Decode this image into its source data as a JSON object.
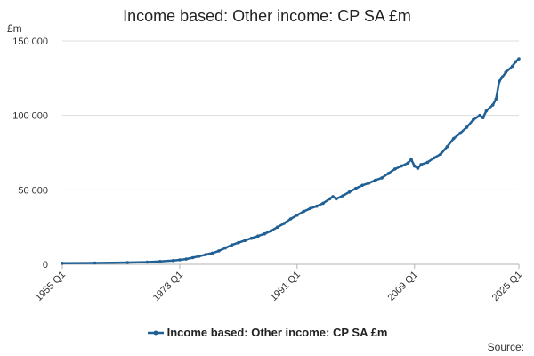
{
  "chart_data": {
    "type": "line",
    "title": "Income based: Other income: CP SA £m",
    "unit_label": "£m",
    "xlabel": "",
    "ylabel": "",
    "x_range": [
      "1955 Q1",
      "2025 Q1"
    ],
    "x_ticks": [
      "1955 Q1",
      "1973 Q1",
      "1991 Q1",
      "2009 Q1",
      "2025 Q1"
    ],
    "y_ticks": [
      "0",
      "50 000",
      "100 000",
      "150 000"
    ],
    "ylim": [
      0,
      150000
    ],
    "grid": "horizontal",
    "legend_position": "bottom",
    "series": [
      {
        "name": "Income based: Other income: CP SA £m",
        "color": "#206095",
        "points": [
          [
            "1955 Q1",
            700
          ],
          [
            "1960 Q1",
            900
          ],
          [
            "1965 Q1",
            1200
          ],
          [
            "1968 Q1",
            1500
          ],
          [
            "1970 Q1",
            1900
          ],
          [
            "1972 Q1",
            2500
          ],
          [
            "1973 Q1",
            3000
          ],
          [
            "1974 Q1",
            3500
          ],
          [
            "1975 Q1",
            4500
          ],
          [
            "1976 Q1",
            5500
          ],
          [
            "1977 Q1",
            6500
          ],
          [
            "1978 Q1",
            7500
          ],
          [
            "1979 Q1",
            9000
          ],
          [
            "1980 Q1",
            11000
          ],
          [
            "1981 Q1",
            13000
          ],
          [
            "1982 Q1",
            14500
          ],
          [
            "1983 Q1",
            16000
          ],
          [
            "1984 Q1",
            17500
          ],
          [
            "1985 Q1",
            19000
          ],
          [
            "1986 Q1",
            20500
          ],
          [
            "1987 Q1",
            22500
          ],
          [
            "1988 Q1",
            25000
          ],
          [
            "1989 Q1",
            27500
          ],
          [
            "1990 Q1",
            30500
          ],
          [
            "1991 Q1",
            33000
          ],
          [
            "1992 Q1",
            35500
          ],
          [
            "1993 Q1",
            37500
          ],
          [
            "1994 Q1",
            39000
          ],
          [
            "1995 Q1",
            41000
          ],
          [
            "1996 Q1",
            44000
          ],
          [
            "1996 Q3",
            45500
          ],
          [
            "1997 Q1",
            44000
          ],
          [
            "1998 Q1",
            46000
          ],
          [
            "1999 Q1",
            48500
          ],
          [
            "2000 Q1",
            51000
          ],
          [
            "2001 Q1",
            53000
          ],
          [
            "2002 Q1",
            54500
          ],
          [
            "2003 Q1",
            56500
          ],
          [
            "2004 Q1",
            58000
          ],
          [
            "2005 Q1",
            61000
          ],
          [
            "2006 Q1",
            64000
          ],
          [
            "2007 Q1",
            66000
          ],
          [
            "2008 Q1",
            68000
          ],
          [
            "2008 Q3",
            70500
          ],
          [
            "2009 Q1",
            66000
          ],
          [
            "2009 Q3",
            64500
          ],
          [
            "2010 Q1",
            67000
          ],
          [
            "2011 Q1",
            68500
          ],
          [
            "2012 Q1",
            71500
          ],
          [
            "2013 Q1",
            74000
          ],
          [
            "2014 Q1",
            79000
          ],
          [
            "2015 Q1",
            84500
          ],
          [
            "2016 Q1",
            88000
          ],
          [
            "2017 Q1",
            92000
          ],
          [
            "2018 Q1",
            97000
          ],
          [
            "2019 Q1",
            100000
          ],
          [
            "2019 Q3",
            98500
          ],
          [
            "2020 Q1",
            103000
          ],
          [
            "2021 Q1",
            107000
          ],
          [
            "2021 Q3",
            111000
          ],
          [
            "2022 Q1",
            123000
          ],
          [
            "2022 Q3",
            126000
          ],
          [
            "2023 Q1",
            129000
          ],
          [
            "2024 Q1",
            133000
          ],
          [
            "2024 Q3",
            136000
          ],
          [
            "2025 Q1",
            138000
          ]
        ]
      }
    ]
  },
  "source_label": "Source:"
}
